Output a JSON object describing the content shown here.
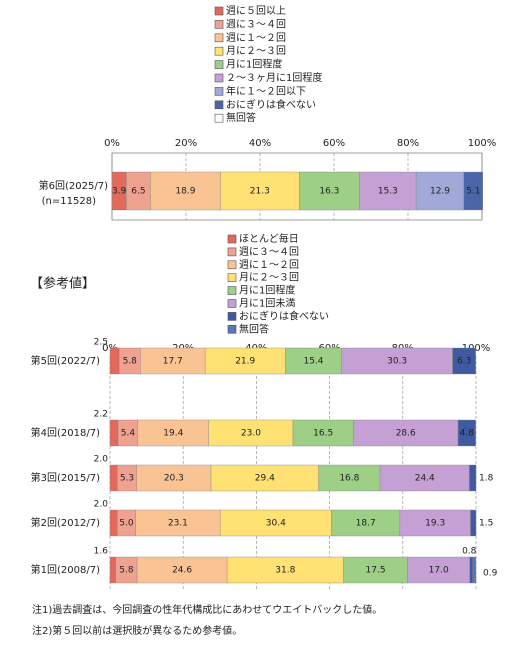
{
  "section_label": "【参考値】",
  "notes": [
    "注1)過去調査は、今回調査の性年代構成比にあわせてウエイトバックした値。",
    "注2)第５回以前は選択肢が異なるため参考値。"
  ],
  "chart_data": [
    {
      "type": "bar",
      "orientation": "horizontal",
      "stacked": true,
      "categories": [
        "第6回(2025/7)"
      ],
      "category_sublabels": [
        "(n=11528)"
      ],
      "xlim": [
        0,
        100
      ],
      "xticks": [
        {
          "value": 0,
          "label": "0%"
        },
        {
          "value": 20,
          "label": "20%"
        },
        {
          "value": 40,
          "label": "40%"
        },
        {
          "value": 60,
          "label": "60%"
        },
        {
          "value": 80,
          "label": "80%"
        },
        {
          "value": 100,
          "label": "100%"
        }
      ],
      "grid": true,
      "series": [
        {
          "name": "週に５回以上",
          "color": "#e2695c",
          "values": [
            3.9
          ]
        },
        {
          "name": "週に３～４回",
          "color": "#f0a291",
          "values": [
            6.5
          ]
        },
        {
          "name": "週に１～２回",
          "color": "#fac394",
          "values": [
            18.9
          ]
        },
        {
          "name": "月に２～３回",
          "color": "#ffe174",
          "values": [
            21.3
          ]
        },
        {
          "name": "月に1回程度",
          "color": "#9dcf86",
          "values": [
            16.3
          ]
        },
        {
          "name": "２～３ヶ月に1回程度",
          "color": "#c4a0d4",
          "values": [
            15.3
          ]
        },
        {
          "name": "年に１～２回以下",
          "color": "#a1a9d8",
          "values": [
            12.9
          ]
        },
        {
          "name": "おにぎりは食べない",
          "color": "#4a66a8",
          "values": [
            5.1
          ]
        },
        {
          "name": "無回答",
          "color": "#ffffff",
          "values": [
            0
          ],
          "value_labels": [
            null
          ]
        }
      ]
    },
    {
      "type": "bar",
      "orientation": "horizontal",
      "stacked": true,
      "categories": [
        "第5回(2022/7)",
        "第4回(2018/7)",
        "第3回(2015/7)",
        "第2回(2012/7)",
        "第1回(2008/7)"
      ],
      "xlim": [
        0,
        100
      ],
      "xticks": [
        {
          "value": 0,
          "label": "0%"
        },
        {
          "value": 20,
          "label": "20%"
        },
        {
          "value": 40,
          "label": "40%"
        },
        {
          "value": 60,
          "label": "60%"
        },
        {
          "value": 80,
          "label": "80%"
        },
        {
          "value": 100,
          "label": "100%"
        }
      ],
      "grid": true,
      "series": [
        {
          "name": "ほとんど毎日",
          "color": "#e2695c",
          "values": [
            2.5,
            2.2,
            2.0,
            2.0,
            1.6
          ],
          "value_labels": [
            "2.5",
            "2.2",
            "2.0",
            "2.0",
            "1.6"
          ]
        },
        {
          "name": "週に３～４回",
          "color": "#f0a291",
          "values": [
            5.8,
            5.4,
            5.3,
            5.0,
            5.8
          ],
          "value_labels": [
            "5.8",
            "5.4",
            "5.3",
            "5.0",
            "5.8"
          ]
        },
        {
          "name": "週に１～２回",
          "color": "#fac394",
          "values": [
            17.7,
            19.4,
            20.3,
            23.1,
            24.6
          ],
          "value_labels": [
            "17.7",
            "19.4",
            "20.3",
            "23.1",
            "24.6"
          ]
        },
        {
          "name": "月に２～３回",
          "color": "#ffe174",
          "values": [
            21.9,
            23.0,
            29.4,
            30.4,
            31.8
          ],
          "value_labels": [
            "21.9",
            "23.0",
            "29.4",
            "30.4",
            "31.8"
          ]
        },
        {
          "name": "月に1回程度",
          "color": "#9dcf86",
          "values": [
            15.4,
            16.5,
            16.8,
            18.7,
            17.5
          ],
          "value_labels": [
            "15.4",
            "16.5",
            "16.8",
            "18.7",
            "17.5"
          ]
        },
        {
          "name": "月に1回未満",
          "color": "#c4a0d4",
          "values": [
            30.3,
            28.6,
            24.4,
            19.3,
            17.0
          ],
          "value_labels": [
            "30.3",
            "28.6",
            "24.4",
            "19.3",
            "17.0"
          ]
        },
        {
          "name": "おにぎりは食べない",
          "color": "#3f5aa0",
          "values": [
            6.3,
            4.8,
            1.8,
            1.5,
            0.8
          ],
          "value_labels": [
            "6.3",
            "4.8",
            "1.8",
            "1.5",
            "0.8"
          ]
        },
        {
          "name": "無回答",
          "color": "#5b77b6",
          "values": [
            null,
            null,
            null,
            null,
            0.9
          ],
          "value_labels": [
            null,
            null,
            null,
            null,
            "0.9"
          ]
        }
      ]
    }
  ]
}
